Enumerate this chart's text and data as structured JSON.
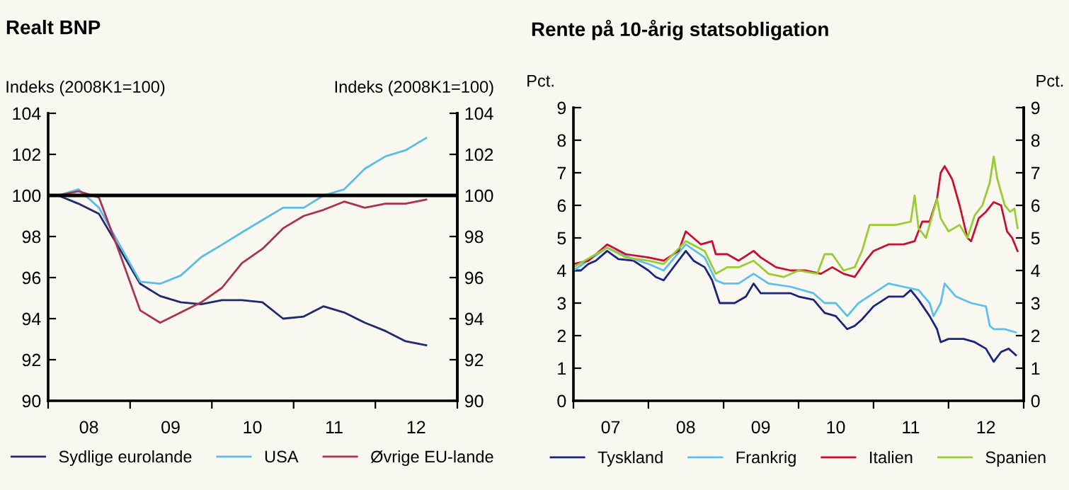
{
  "chart_data": [
    {
      "type": "line",
      "title": "Realt BNP",
      "ylabel": "Indeks (2008K1=100)",
      "y2label": "Indeks (2008K1=100)",
      "x": [
        "2008-02-15",
        "2008-05-15",
        "2008-08-15",
        "2008-11-15",
        "2009-02-15",
        "2009-05-15",
        "2009-08-15",
        "2009-11-15",
        "2010-02-15",
        "2010-05-15",
        "2010-08-15",
        "2010-11-15",
        "2011-02-15",
        "2011-05-15",
        "2011-08-15",
        "2011-11-15",
        "2012-02-15",
        "2012-05-15",
        "2012-08-15"
      ],
      "series": [
        {
          "name": "Sydlige eurolande",
          "color": "#1f2a6b",
          "values": [
            100,
            99.6,
            99.1,
            97.4,
            95.7,
            95.1,
            94.8,
            94.7,
            94.9,
            94.9,
            94.8,
            94.0,
            94.1,
            94.6,
            94.3,
            93.8,
            93.4,
            92.9,
            92.7
          ]
        },
        {
          "name": "USA",
          "color": "#5bbde6",
          "values": [
            100,
            100.3,
            99.4,
            97.6,
            95.8,
            95.7,
            96.1,
            97.0,
            97.6,
            98.2,
            98.8,
            99.4,
            99.4,
            100.0,
            100.3,
            101.3,
            101.9,
            102.2,
            102.8
          ]
        },
        {
          "name": "Øvrige EU-lande",
          "color": "#a8344f",
          "values": [
            100,
            100.2,
            99.9,
            97.2,
            94.4,
            93.8,
            94.3,
            94.8,
            95.5,
            96.7,
            97.4,
            98.4,
            99.0,
            99.3,
            99.7,
            99.4,
            99.6,
            99.6,
            99.8
          ]
        }
      ],
      "xlim": [
        "2008-01-01",
        "2013-01-01"
      ],
      "xticks": [
        {
          "value": "2008-01-01",
          "label": null
        },
        {
          "value": "2008-07-01",
          "label": "08"
        },
        {
          "value": "2009-01-01",
          "label": null
        },
        {
          "value": "2009-07-01",
          "label": "09"
        },
        {
          "value": "2010-01-01",
          "label": null
        },
        {
          "value": "2010-07-01",
          "label": "10"
        },
        {
          "value": "2011-01-01",
          "label": null
        },
        {
          "value": "2011-07-01",
          "label": "11"
        },
        {
          "value": "2012-01-01",
          "label": null
        },
        {
          "value": "2012-07-01",
          "label": "12"
        },
        {
          "value": "2013-01-01",
          "label": null
        }
      ],
      "ylim": [
        90,
        104
      ],
      "yticks": [
        90,
        92,
        94,
        96,
        98,
        100,
        102,
        104
      ],
      "y2lim": [
        90,
        104
      ],
      "y2ticks": [
        90,
        92,
        94,
        96,
        98,
        100,
        102,
        104
      ],
      "ref_lines": [
        {
          "axis": "y",
          "value": 100,
          "color": "#000000"
        }
      ],
      "legend": "bottom",
      "grid": false
    },
    {
      "type": "line",
      "title": "Rente på 10-årig statsobligation",
      "ylabel": "Pct.",
      "y2label": "Pct.",
      "series": [
        {
          "name": "Tyskland",
          "color": "#1a237e",
          "x": [
            "2007-01-01",
            "2007-02-06",
            "2007-03-15",
            "2007-04-20",
            "2007-06-14",
            "2007-08-08",
            "2007-10-20",
            "2008-01-01",
            "2008-02-06",
            "2008-03-15",
            "2008-04-20",
            "2008-07-01",
            "2008-08-08",
            "2008-10-01",
            "2008-11-06",
            "2008-12-13",
            "2009-01-01",
            "2009-02-24",
            "2009-04-20",
            "2009-05-27",
            "2009-07-01",
            "2009-09-13",
            "2009-11-24",
            "2010-01-01",
            "2010-03-15",
            "2010-05-08",
            "2010-07-01",
            "2010-08-26",
            "2010-10-01",
            "2010-11-06",
            "2011-01-01",
            "2011-03-15",
            "2011-05-27",
            "2011-07-01",
            "2011-08-08",
            "2011-10-01",
            "2011-11-06",
            "2011-11-24",
            "2012-01-01",
            "2012-03-15",
            "2012-05-08",
            "2012-07-01",
            "2012-08-08",
            "2012-09-13",
            "2012-10-20",
            "2012-11-24"
          ],
          "values": [
            4.0,
            4.0,
            4.2,
            4.3,
            4.6,
            4.35,
            4.3,
            4.0,
            3.8,
            3.7,
            4.0,
            4.6,
            4.3,
            4.1,
            3.7,
            3.0,
            3.0,
            3.0,
            3.2,
            3.6,
            3.3,
            3.3,
            3.3,
            3.2,
            3.1,
            2.7,
            2.6,
            2.2,
            2.3,
            2.5,
            2.9,
            3.2,
            3.2,
            3.4,
            3.1,
            2.6,
            2.2,
            1.8,
            1.9,
            1.9,
            1.8,
            1.6,
            1.2,
            1.5,
            1.6,
            1.4
          ]
        },
        {
          "name": "Frankrig",
          "color": "#5bc0eb",
          "x": [
            "2007-01-01",
            "2007-06-14",
            "2007-10-20",
            "2008-01-01",
            "2008-03-15",
            "2008-07-01",
            "2008-10-01",
            "2008-11-24",
            "2009-01-01",
            "2009-03-15",
            "2009-05-27",
            "2009-08-08",
            "2009-11-24",
            "2010-03-15",
            "2010-05-08",
            "2010-07-01",
            "2010-08-26",
            "2010-10-20",
            "2011-01-01",
            "2011-03-15",
            "2011-05-27",
            "2011-08-08",
            "2011-10-01",
            "2011-10-20",
            "2011-11-24",
            "2011-12-13",
            "2012-02-06",
            "2012-04-20",
            "2012-07-01",
            "2012-07-20",
            "2012-08-08",
            "2012-10-01",
            "2012-11-24"
          ],
          "values": [
            4.0,
            4.7,
            4.35,
            4.2,
            4.0,
            4.8,
            4.4,
            3.7,
            3.6,
            3.6,
            3.9,
            3.6,
            3.5,
            3.3,
            3.0,
            3.0,
            2.6,
            3.0,
            3.3,
            3.6,
            3.5,
            3.4,
            3.0,
            2.6,
            3.0,
            3.6,
            3.2,
            3.0,
            2.9,
            2.3,
            2.2,
            2.2,
            2.1
          ]
        },
        {
          "name": "Italien",
          "color": "#c8102e",
          "x": [
            "2007-01-01",
            "2007-03-15",
            "2007-06-14",
            "2007-09-13",
            "2008-01-01",
            "2008-03-15",
            "2008-05-27",
            "2008-07-01",
            "2008-09-13",
            "2008-11-06",
            "2008-11-24",
            "2009-01-19",
            "2009-03-15",
            "2009-05-27",
            "2009-07-01",
            "2009-09-13",
            "2009-11-24",
            "2010-02-06",
            "2010-04-20",
            "2010-06-14",
            "2010-08-08",
            "2010-10-01",
            "2010-11-24",
            "2011-01-01",
            "2011-03-15",
            "2011-05-27",
            "2011-07-20",
            "2011-08-26",
            "2011-10-01",
            "2011-11-06",
            "2011-11-24",
            "2011-12-13",
            "2012-01-01",
            "2012-01-19",
            "2012-02-24",
            "2012-04-02",
            "2012-04-20",
            "2012-05-27",
            "2012-07-01",
            "2012-08-08",
            "2012-09-13",
            "2012-10-12",
            "2012-11-06",
            "2012-12-02"
          ],
          "values": [
            4.2,
            4.3,
            4.8,
            4.5,
            4.4,
            4.3,
            4.6,
            5.2,
            4.8,
            4.9,
            4.5,
            4.5,
            4.3,
            4.6,
            4.4,
            4.1,
            4.0,
            4.0,
            3.9,
            4.1,
            3.9,
            3.8,
            4.3,
            4.6,
            4.8,
            4.8,
            4.9,
            5.5,
            5.5,
            6.2,
            7.0,
            7.2,
            7.0,
            6.8,
            6.0,
            5.0,
            4.9,
            5.6,
            5.8,
            6.1,
            6.0,
            5.2,
            5.0,
            4.6
          ]
        },
        {
          "name": "Spanien",
          "color": "#99cc33",
          "x": [
            "2007-01-01",
            "2007-06-14",
            "2007-09-13",
            "2008-01-01",
            "2008-03-15",
            "2008-07-01",
            "2008-10-01",
            "2008-11-24",
            "2009-01-19",
            "2009-03-15",
            "2009-05-27",
            "2009-08-08",
            "2009-10-20",
            "2010-01-01",
            "2010-04-02",
            "2010-05-08",
            "2010-06-14",
            "2010-08-08",
            "2010-10-01",
            "2010-11-06",
            "2010-12-13",
            "2011-02-06",
            "2011-04-20",
            "2011-07-01",
            "2011-07-20",
            "2011-08-08",
            "2011-09-13",
            "2011-11-06",
            "2011-11-24",
            "2012-01-01",
            "2012-02-24",
            "2012-04-02",
            "2012-05-08",
            "2012-06-14",
            "2012-07-20",
            "2012-08-08",
            "2012-08-26",
            "2012-10-01",
            "2012-10-27",
            "2012-11-17",
            "2012-12-02"
          ],
          "values": [
            4.1,
            4.7,
            4.4,
            4.3,
            4.2,
            4.9,
            4.6,
            3.9,
            4.1,
            4.1,
            4.3,
            3.9,
            3.8,
            4.0,
            3.9,
            4.5,
            4.5,
            4.0,
            4.1,
            4.6,
            5.4,
            5.4,
            5.4,
            5.5,
            6.3,
            5.3,
            5.0,
            6.2,
            5.6,
            5.2,
            5.4,
            5.0,
            5.7,
            6.0,
            6.7,
            7.5,
            6.8,
            6.0,
            5.8,
            5.9,
            5.3
          ]
        }
      ],
      "xlim": [
        "2007-01-01",
        "2013-01-01"
      ],
      "xticks": [
        {
          "value": "2007-01-01",
          "label": null
        },
        {
          "value": "2007-07-01",
          "label": "07"
        },
        {
          "value": "2008-01-01",
          "label": null
        },
        {
          "value": "2008-07-01",
          "label": "08"
        },
        {
          "value": "2009-01-01",
          "label": null
        },
        {
          "value": "2009-07-01",
          "label": "09"
        },
        {
          "value": "2010-01-01",
          "label": null
        },
        {
          "value": "2010-07-01",
          "label": "10"
        },
        {
          "value": "2011-01-01",
          "label": null
        },
        {
          "value": "2011-07-01",
          "label": "11"
        },
        {
          "value": "2012-01-01",
          "label": null
        },
        {
          "value": "2012-07-01",
          "label": "12"
        },
        {
          "value": "2013-01-01",
          "label": null
        }
      ],
      "ylim": [
        0,
        9
      ],
      "yticks": [
        0,
        1,
        2,
        3,
        4,
        5,
        6,
        7,
        8,
        9
      ],
      "y2lim": [
        0,
        9
      ],
      "y2ticks": [
        0,
        1,
        2,
        3,
        4,
        5,
        6,
        7,
        8,
        9
      ],
      "legend": "bottom",
      "grid": false
    }
  ]
}
